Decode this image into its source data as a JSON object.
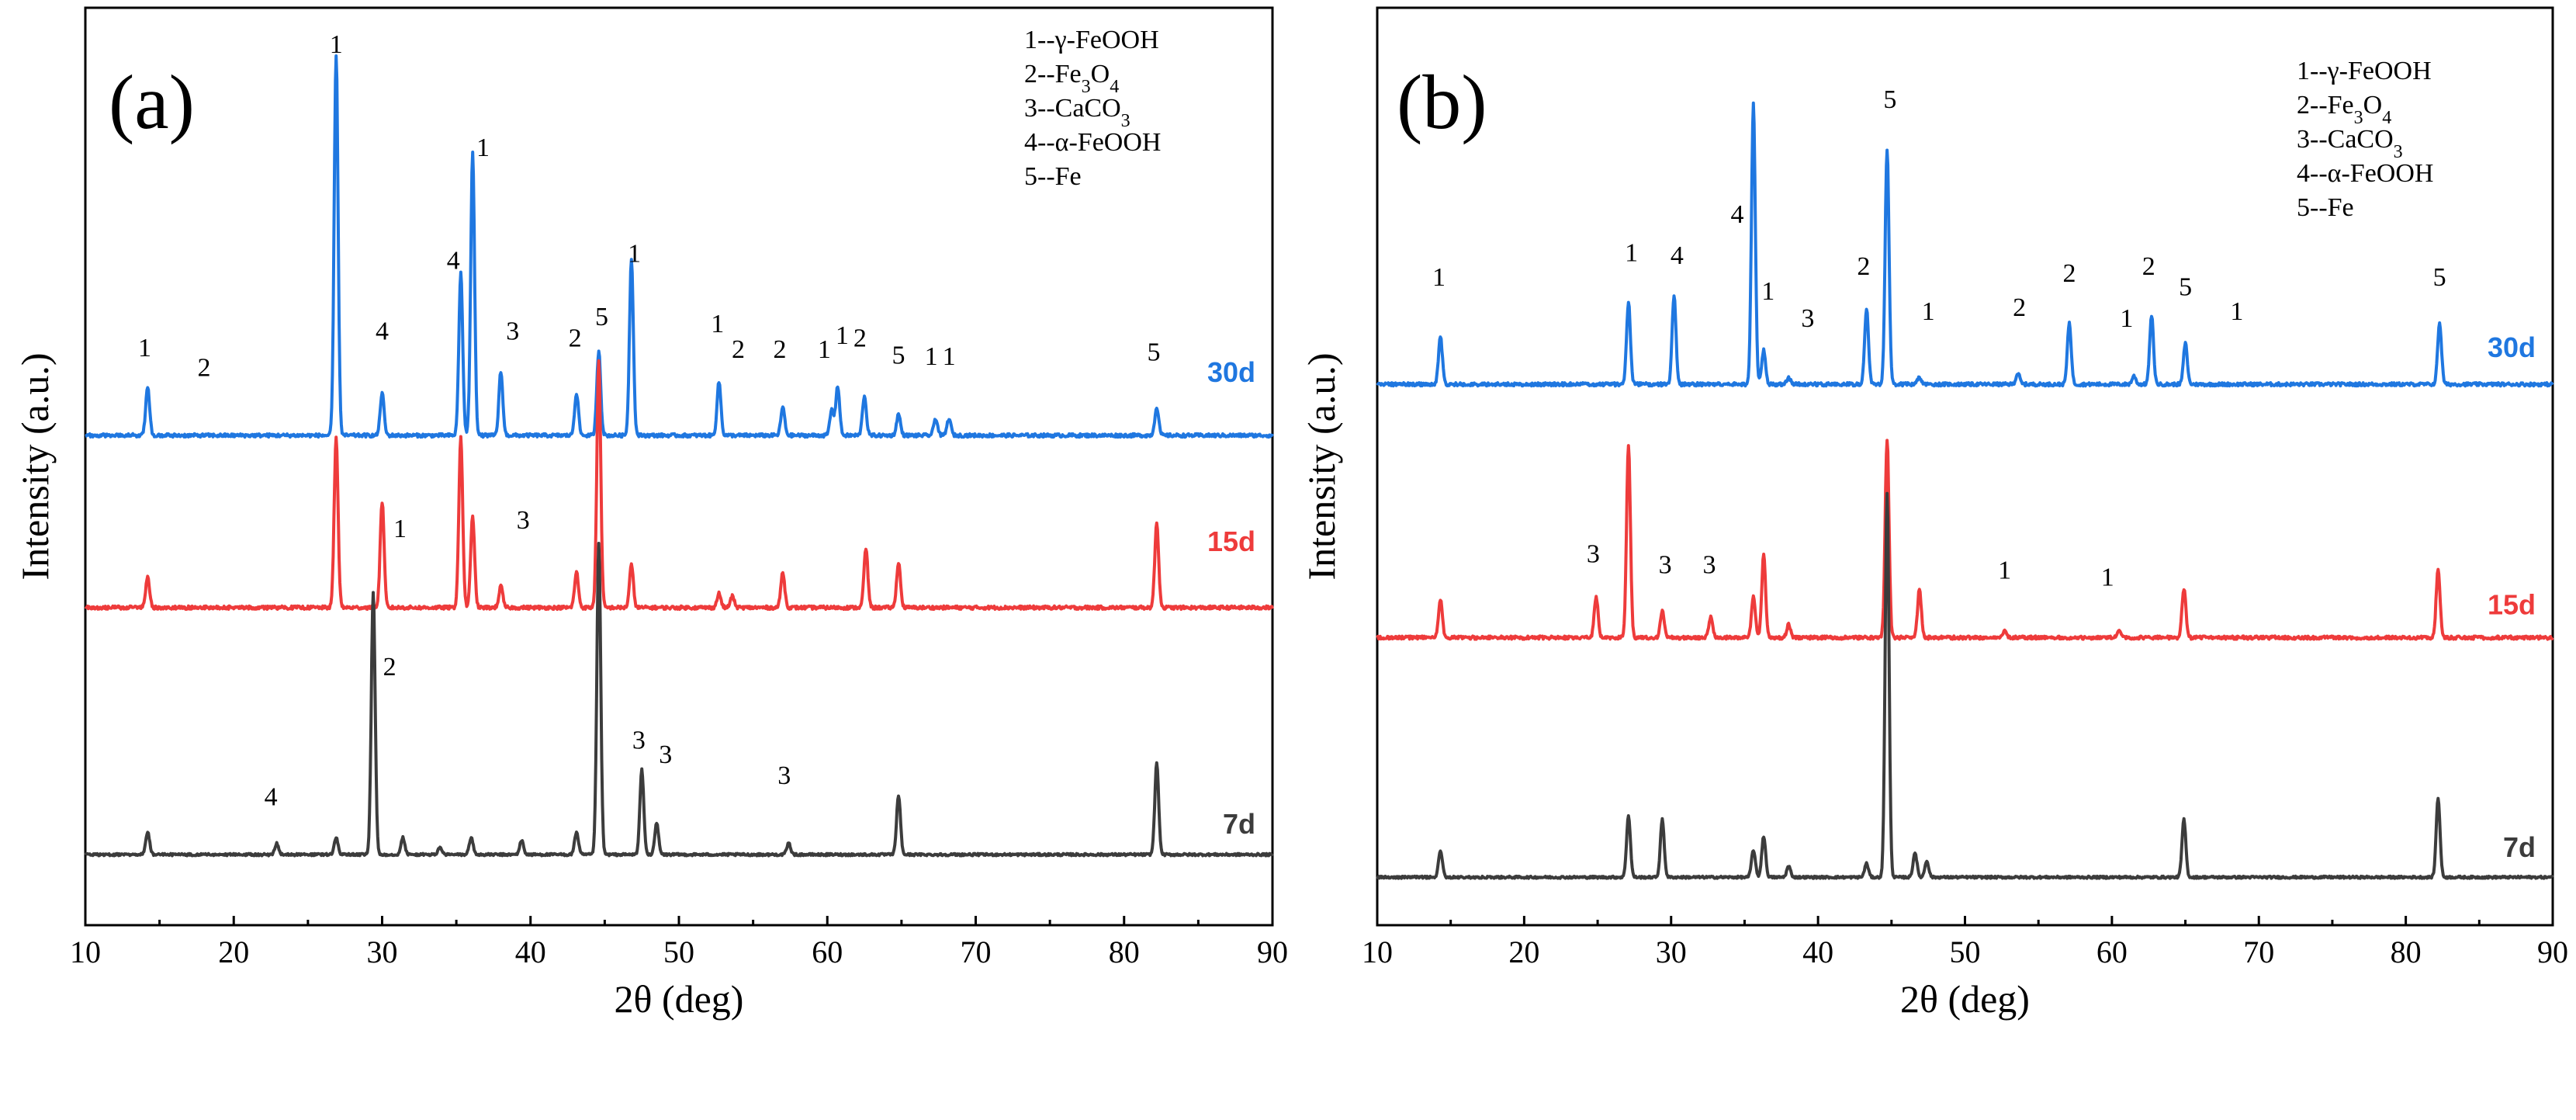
{
  "colors": {
    "d30": "#1f77e0",
    "d15": "#ee3b3b",
    "d7": "#3c3c3c",
    "frame": "#000000"
  },
  "chart_data": [
    {
      "type": "line",
      "panel_label": "(a)",
      "xlabel": "2θ (deg)",
      "ylabel": "Intensity (a.u.)",
      "xlim": [
        10,
        90
      ],
      "xticks": [
        10,
        20,
        30,
        40,
        50,
        60,
        70,
        80,
        90
      ],
      "xtick_labels": [
        "10",
        "20",
        "30",
        "40",
        "50",
        "60",
        "70",
        "80",
        "90"
      ],
      "legend": [
        {
          "text": "1--γ-FeOOH"
        },
        {
          "text": "2--Fe",
          "sub": "3",
          "text2": "O",
          "sub2": "4"
        },
        {
          "text": "3--CaCO",
          "sub": "3"
        },
        {
          "text": "4--α-FeOOH"
        },
        {
          "text": "5--Fe"
        }
      ],
      "series": [
        {
          "name": "30d",
          "color": "#1f77e0",
          "baseline": 0.22,
          "noise": 0.012,
          "peaks": [
            [
              14.2,
              0.35
            ],
            [
              26.9,
              2.7
            ],
            [
              30.0,
              0.3
            ],
            [
              35.3,
              1.15
            ],
            [
              36.1,
              2.0
            ],
            [
              38.0,
              0.45
            ],
            [
              43.1,
              0.3
            ],
            [
              44.6,
              0.6
            ],
            [
              46.8,
              1.25
            ],
            [
              52.7,
              0.38
            ],
            [
              57.0,
              0.2
            ],
            [
              60.3,
              0.18
            ],
            [
              60.7,
              0.35
            ],
            [
              62.5,
              0.28
            ],
            [
              64.8,
              0.15
            ],
            [
              67.3,
              0.12
            ],
            [
              68.2,
              0.12
            ],
            [
              82.2,
              0.2
            ]
          ],
          "annotations": [
            {
              "text": "1",
              "x": 14.0,
              "y": 0.78
            },
            {
              "text": "2",
              "x": 18.0,
              "y": 0.64
            },
            {
              "text": "1",
              "x": 26.9,
              "y": 2.93
            },
            {
              "text": "4",
              "x": 30.0,
              "y": 0.9
            },
            {
              "text": "4",
              "x": 34.8,
              "y": 1.4
            },
            {
              "text": "1",
              "x": 36.8,
              "y": 2.2
            },
            {
              "text": "3",
              "x": 38.8,
              "y": 0.9
            },
            {
              "text": "2",
              "x": 43.0,
              "y": 0.85
            },
            {
              "text": "5",
              "x": 44.8,
              "y": 1.0
            },
            {
              "text": "1",
              "x": 47.0,
              "y": 1.45
            },
            {
              "text": "1",
              "x": 52.6,
              "y": 0.95
            },
            {
              "text": "2",
              "x": 54.0,
              "y": 0.77
            },
            {
              "text": "2",
              "x": 56.8,
              "y": 0.77
            },
            {
              "text": "1",
              "x": 59.8,
              "y": 0.77
            },
            {
              "text": "1",
              "x": 61.0,
              "y": 0.87
            },
            {
              "text": "2",
              "x": 62.2,
              "y": 0.85
            },
            {
              "text": "5",
              "x": 64.8,
              "y": 0.73
            },
            {
              "text": "1",
              "x": 67.0,
              "y": 0.72
            },
            {
              "text": "1",
              "x": 68.2,
              "y": 0.72
            },
            {
              "text": "5",
              "x": 82.0,
              "y": 0.75
            }
          ],
          "label_y": 0.6
        },
        {
          "name": "15d",
          "color": "#ee3b3b",
          "baseline": -1.0,
          "noise": 0.012,
          "peaks": [
            [
              14.2,
              0.22
            ],
            [
              26.9,
              1.2
            ],
            [
              30.0,
              0.75
            ],
            [
              35.3,
              1.2
            ],
            [
              36.1,
              0.65
            ],
            [
              38.0,
              0.15
            ],
            [
              43.1,
              0.25
            ],
            [
              44.6,
              1.75
            ],
            [
              46.8,
              0.3
            ],
            [
              52.7,
              0.1
            ],
            [
              53.6,
              0.08
            ],
            [
              57.0,
              0.25
            ],
            [
              62.6,
              0.42
            ],
            [
              64.8,
              0.32
            ],
            [
              82.2,
              0.6
            ]
          ],
          "annotations": [
            {
              "text": "1",
              "x": 31.2,
              "y": -0.5
            },
            {
              "text": "3",
              "x": 39.5,
              "y": -0.44
            }
          ],
          "label_y": -0.6
        },
        {
          "name": "7d",
          "color": "#3c3c3c",
          "baseline": -2.75,
          "noise": 0.008,
          "peaks": [
            [
              14.2,
              0.16
            ],
            [
              22.9,
              0.08
            ],
            [
              26.9,
              0.12
            ],
            [
              29.4,
              1.85
            ],
            [
              31.4,
              0.12
            ],
            [
              33.9,
              0.05
            ],
            [
              36.0,
              0.12
            ],
            [
              39.4,
              0.1
            ],
            [
              43.1,
              0.16
            ],
            [
              44.6,
              2.2
            ],
            [
              47.5,
              0.6
            ],
            [
              48.5,
              0.22
            ],
            [
              57.4,
              0.08
            ],
            [
              64.8,
              0.42
            ],
            [
              82.2,
              0.65
            ]
          ],
          "annotations": [
            {
              "text": "4",
              "x": 22.5,
              "y": -2.4
            },
            {
              "text": "2",
              "x": 30.5,
              "y": -1.48
            },
            {
              "text": "3",
              "x": 47.3,
              "y": -2.0
            },
            {
              "text": "3",
              "x": 49.1,
              "y": -2.1
            },
            {
              "text": "3",
              "x": 57.1,
              "y": -2.25
            }
          ],
          "label_y": -2.6
        }
      ]
    },
    {
      "type": "line",
      "panel_label": "(b)",
      "xlabel": "2θ (deg)",
      "ylabel": "Intensity (a.u.)",
      "xlim": [
        10,
        90
      ],
      "xticks": [
        10,
        20,
        30,
        40,
        50,
        60,
        70,
        80,
        90
      ],
      "xtick_labels": [
        "10",
        "20",
        "30",
        "40",
        "50",
        "60",
        "70",
        "80",
        "90"
      ],
      "legend": [
        {
          "text": "1--γ-FeOOH"
        },
        {
          "text": "2--Fe",
          "sub": "3",
          "text2": "O",
          "sub2": "4"
        },
        {
          "text": "3--CaCO",
          "sub": "3"
        },
        {
          "text": "4--α-FeOOH"
        },
        {
          "text": "5--Fe"
        }
      ],
      "series": [
        {
          "name": "30d",
          "color": "#1f77e0",
          "baseline": 0.0,
          "noise": 0.012,
          "peaks": [
            [
              14.3,
              0.35
            ],
            [
              27.1,
              0.6
            ],
            [
              30.2,
              0.65
            ],
            [
              35.6,
              2.05
            ],
            [
              36.3,
              0.25
            ],
            [
              38.0,
              0.05
            ],
            [
              43.3,
              0.55
            ],
            [
              44.7,
              1.72
            ],
            [
              46.9,
              0.05
            ],
            [
              53.6,
              0.08
            ],
            [
              57.1,
              0.45
            ],
            [
              61.5,
              0.06
            ],
            [
              62.7,
              0.5
            ],
            [
              65.0,
              0.3
            ],
            [
              82.3,
              0.45
            ]
          ],
          "annotations": [
            {
              "text": "1",
              "x": 14.2,
              "y": 0.72
            },
            {
              "text": "1",
              "x": 27.3,
              "y": 0.9
            },
            {
              "text": "4",
              "x": 30.4,
              "y": 0.88
            },
            {
              "text": "4",
              "x": 34.5,
              "y": 1.18
            },
            {
              "text": "1",
              "x": 36.6,
              "y": 0.62
            },
            {
              "text": "3",
              "x": 39.3,
              "y": 0.42
            },
            {
              "text": "2",
              "x": 43.1,
              "y": 0.8
            },
            {
              "text": "5",
              "x": 44.9,
              "y": 2.02
            },
            {
              "text": "1",
              "x": 47.5,
              "y": 0.47
            },
            {
              "text": "2",
              "x": 53.7,
              "y": 0.5
            },
            {
              "text": "2",
              "x": 57.1,
              "y": 0.75
            },
            {
              "text": "1",
              "x": 61.0,
              "y": 0.42
            },
            {
              "text": "2",
              "x": 62.5,
              "y": 0.8
            },
            {
              "text": "5",
              "x": 65.0,
              "y": 0.65
            },
            {
              "text": "1",
              "x": 68.5,
              "y": 0.47
            },
            {
              "text": "5",
              "x": 82.3,
              "y": 0.72
            }
          ],
          "label_y": 0.2
        },
        {
          "name": "15d",
          "color": "#ee3b3b",
          "baseline": -1.85,
          "noise": 0.012,
          "peaks": [
            [
              14.3,
              0.28
            ],
            [
              24.9,
              0.3
            ],
            [
              27.1,
              1.4
            ],
            [
              29.4,
              0.2
            ],
            [
              32.7,
              0.15
            ],
            [
              35.6,
              0.3
            ],
            [
              36.3,
              0.6
            ],
            [
              38.0,
              0.1
            ],
            [
              44.7,
              1.45
            ],
            [
              46.9,
              0.35
            ],
            [
              52.7,
              0.05
            ],
            [
              60.5,
              0.06
            ],
            [
              64.9,
              0.36
            ],
            [
              82.2,
              0.5
            ]
          ],
          "annotations": [
            {
              "text": "3",
              "x": 24.7,
              "y": -1.3
            },
            {
              "text": "3",
              "x": 29.6,
              "y": -1.38
            },
            {
              "text": "3",
              "x": 32.6,
              "y": -1.38
            },
            {
              "text": "1",
              "x": 52.7,
              "y": -1.42
            },
            {
              "text": "1",
              "x": 59.7,
              "y": -1.47
            }
          ],
          "label_y": -1.68
        },
        {
          "name": "7d",
          "color": "#3c3c3c",
          "baseline": -3.6,
          "noise": 0.008,
          "peaks": [
            [
              14.3,
              0.2
            ],
            [
              27.1,
              0.45
            ],
            [
              29.4,
              0.42
            ],
            [
              35.6,
              0.2
            ],
            [
              36.3,
              0.3
            ],
            [
              38.0,
              0.08
            ],
            [
              43.3,
              0.1
            ],
            [
              44.7,
              2.8
            ],
            [
              46.6,
              0.18
            ],
            [
              47.4,
              0.12
            ],
            [
              64.9,
              0.42
            ],
            [
              82.2,
              0.58
            ]
          ],
          "annotations": [],
          "label_y": -3.45
        }
      ]
    }
  ]
}
